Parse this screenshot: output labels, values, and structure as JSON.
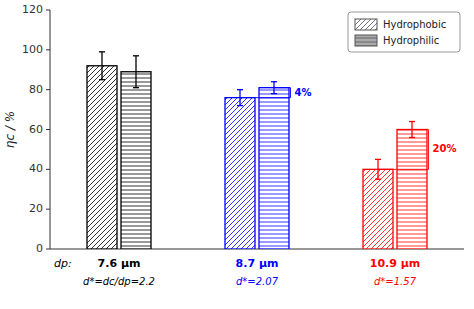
{
  "chart_data": {
    "type": "bar",
    "categories": [
      "7.6 µm",
      "8.7 µm",
      "10.9 µm"
    ],
    "colors": [
      "black",
      "blue",
      "red"
    ],
    "xlabel": "dp:",
    "category_notes": [
      "d*=dc/dp=2.2",
      "d*=2.07",
      "d*=1.57"
    ],
    "ylabel": "ηc / %",
    "series": [
      {
        "name": "Hydrophobic",
        "values": [
          92,
          76,
          40
        ],
        "errors": [
          7,
          4,
          5
        ]
      },
      {
        "name": "Hydrophilic",
        "values": [
          89,
          81,
          60
        ],
        "errors": [
          8,
          3,
          4
        ]
      }
    ],
    "brackets": [
      {
        "category": 1,
        "text": "4%",
        "color": "blue"
      },
      {
        "category": 2,
        "text": "20%",
        "color": "red"
      }
    ],
    "ylim": [
      0,
      120
    ],
    "yticks": [
      0,
      20,
      40,
      60,
      80,
      100,
      120
    ],
    "grid": false,
    "legend": "upper right"
  }
}
